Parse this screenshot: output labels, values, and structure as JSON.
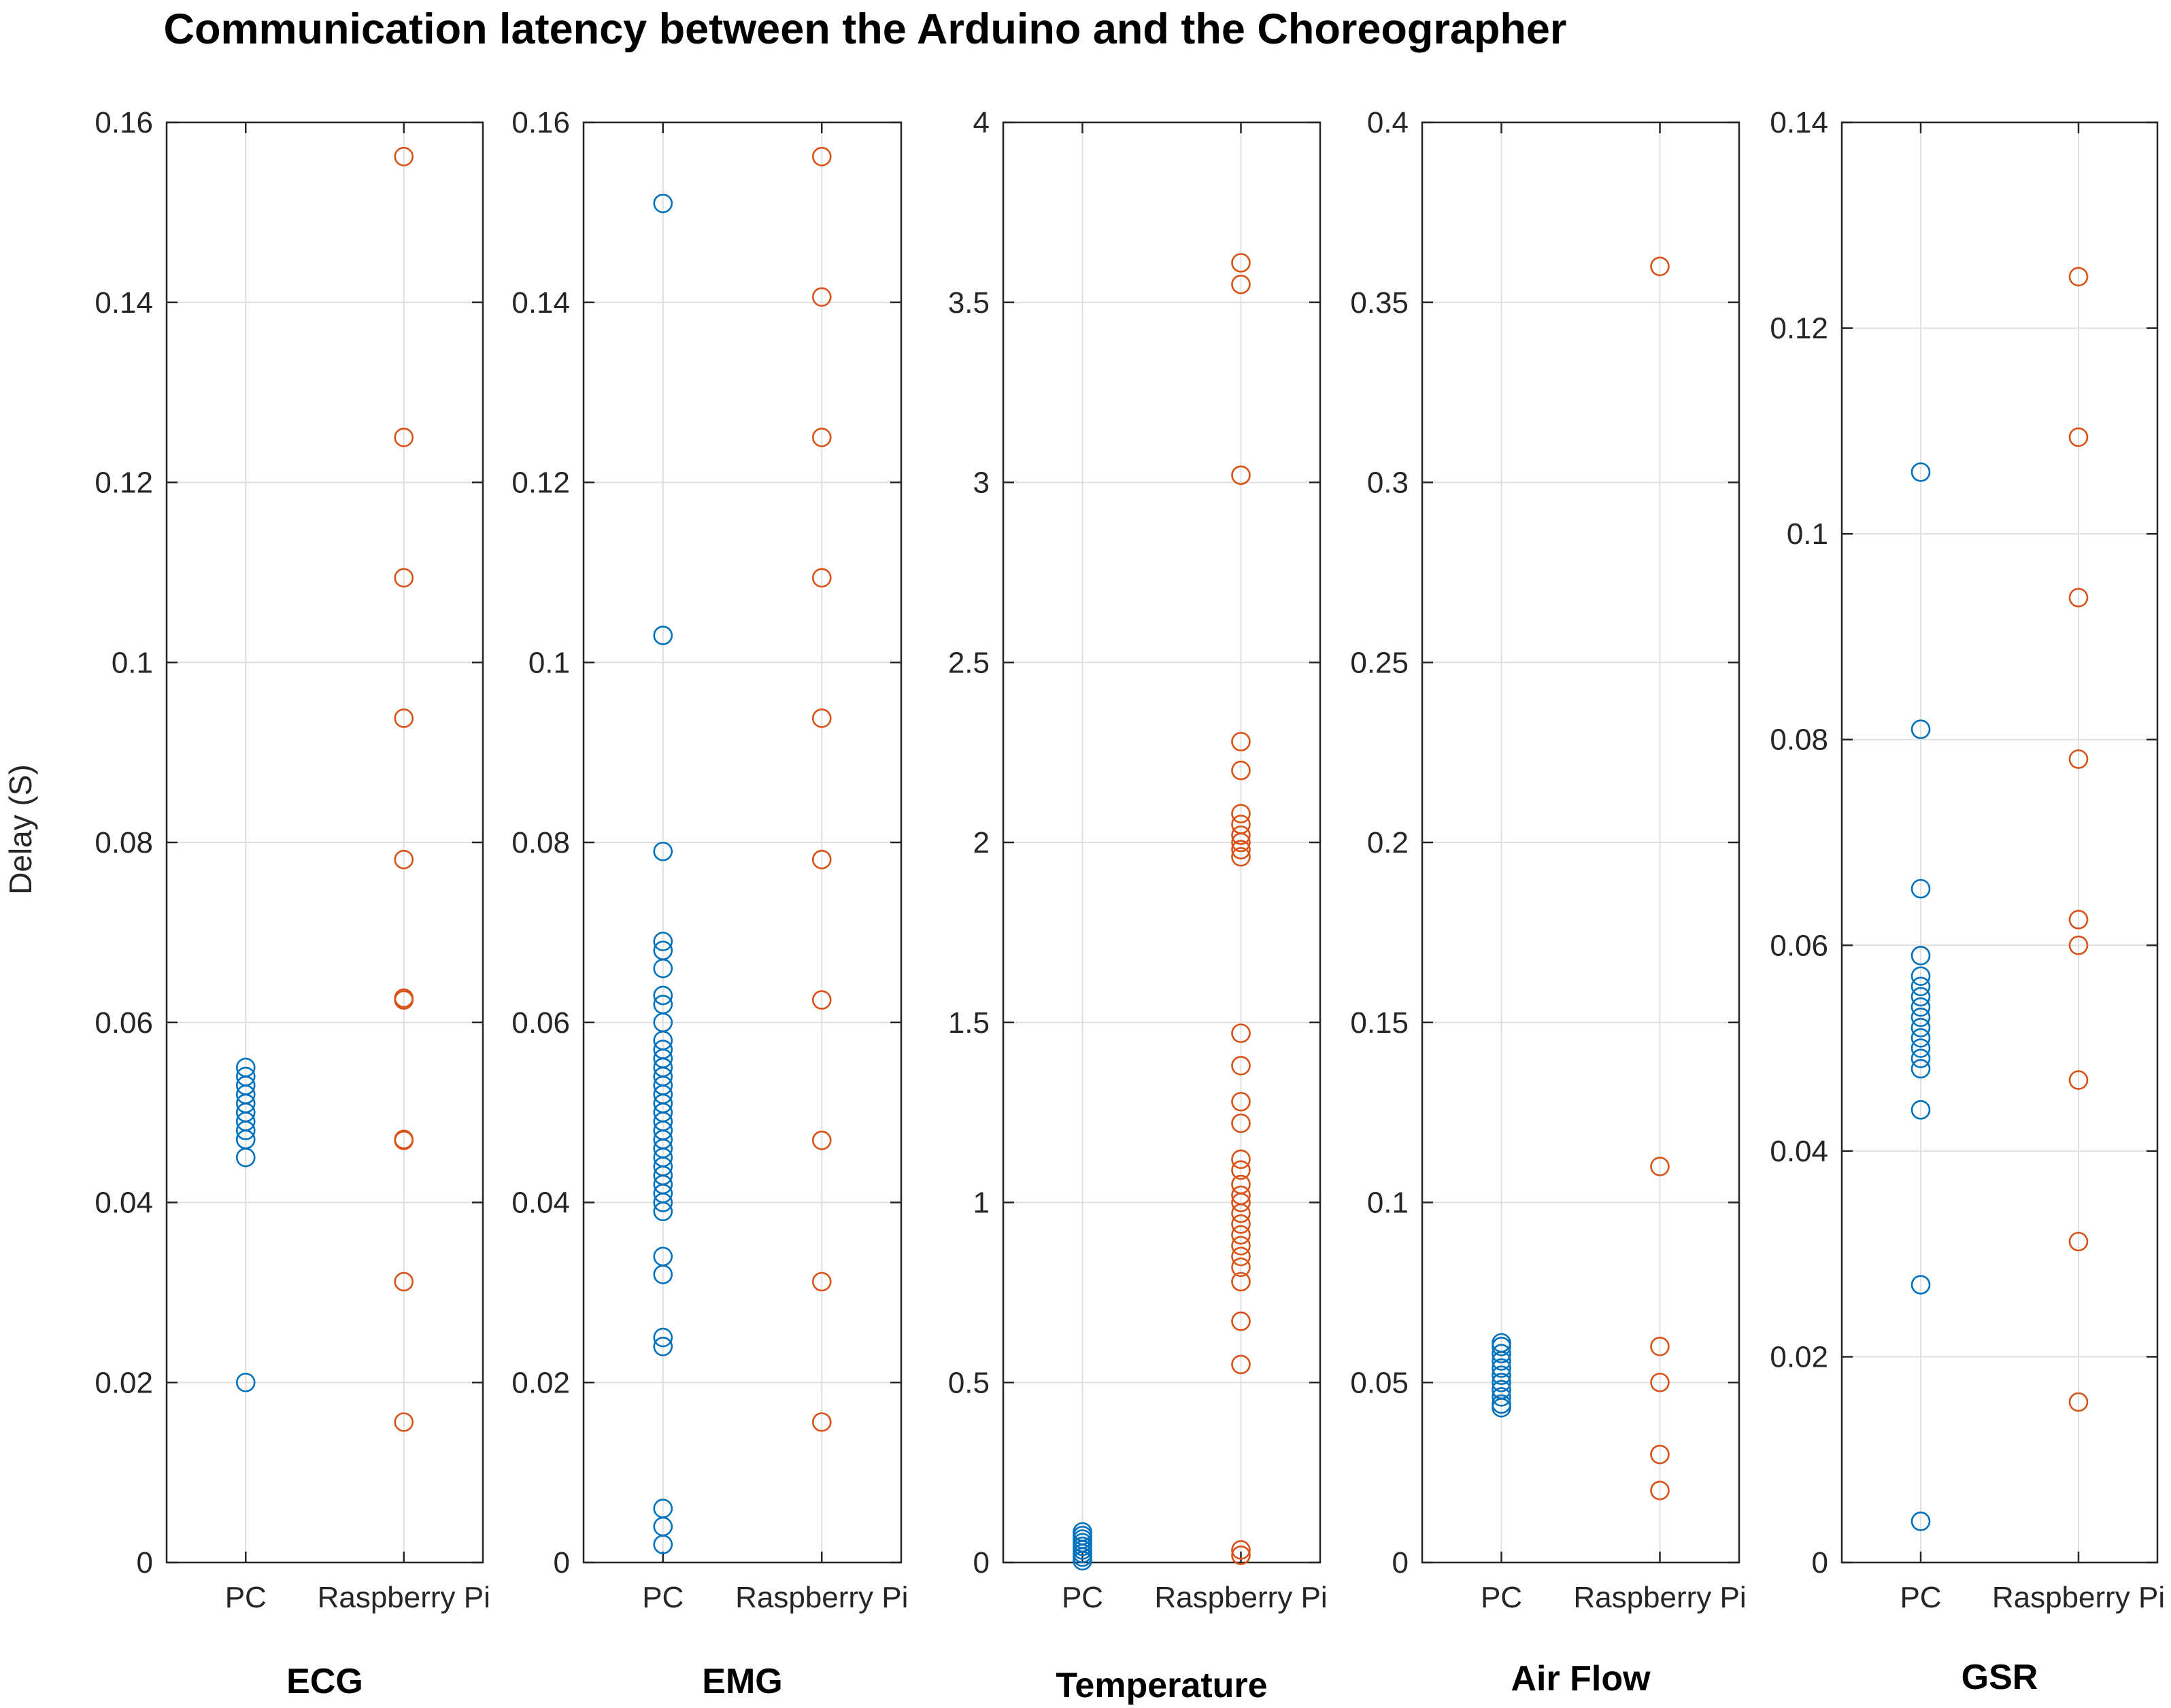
{
  "chart_data": {
    "type": "scatter",
    "title": "Communication latency between the Arduino and the Choreographer",
    "ylabel": "Delay (S)",
    "categories": [
      "PC",
      "Raspberry Pi"
    ],
    "colors": {
      "PC": "#0072BD",
      "Raspberry Pi": "#D95319"
    },
    "panels": [
      {
        "name": "ECG",
        "ylim": [
          0,
          0.16
        ],
        "yticks": [
          0,
          0.02,
          0.04,
          0.06,
          0.08,
          0.1,
          0.12,
          0.14,
          0.16
        ],
        "ytick_labels": [
          "0",
          "0.02",
          "0.04",
          "0.06",
          "0.08",
          "0.1",
          "0.12",
          "0.14",
          "0.16"
        ],
        "series": [
          {
            "name": "PC",
            "values": [
              0.02,
              0.045,
              0.047,
              0.048,
              0.049,
              0.05,
              0.051,
              0.052,
              0.053,
              0.054,
              0.055
            ]
          },
          {
            "name": "Raspberry Pi",
            "values": [
              0.0156,
              0.0312,
              0.0469,
              0.047,
              0.0625,
              0.0627,
              0.0781,
              0.0938,
              0.1094,
              0.125,
              0.1562
            ]
          }
        ]
      },
      {
        "name": "EMG",
        "ylim": [
          0,
          0.16
        ],
        "yticks": [
          0,
          0.02,
          0.04,
          0.06,
          0.08,
          0.1,
          0.12,
          0.14,
          0.16
        ],
        "ytick_labels": [
          "0",
          "0.02",
          "0.04",
          "0.06",
          "0.08",
          "0.1",
          "0.12",
          "0.14",
          "0.16"
        ],
        "series": [
          {
            "name": "PC",
            "values": [
              0.002,
              0.004,
              0.006,
              0.024,
              0.025,
              0.032,
              0.034,
              0.039,
              0.04,
              0.041,
              0.042,
              0.043,
              0.044,
              0.045,
              0.046,
              0.047,
              0.048,
              0.049,
              0.05,
              0.051,
              0.052,
              0.053,
              0.054,
              0.055,
              0.056,
              0.057,
              0.058,
              0.06,
              0.062,
              0.063,
              0.066,
              0.068,
              0.069,
              0.079,
              0.103,
              0.151
            ]
          },
          {
            "name": "Raspberry Pi",
            "values": [
              0.0156,
              0.0312,
              0.0469,
              0.0625,
              0.0781,
              0.0938,
              0.1094,
              0.125,
              0.1406,
              0.1562
            ]
          }
        ]
      },
      {
        "name": "Temperature",
        "ylim": [
          0,
          4
        ],
        "yticks": [
          0,
          0.5,
          1,
          1.5,
          2,
          2.5,
          3,
          3.5,
          4
        ],
        "ytick_labels": [
          "0",
          "0.5",
          "1",
          "1.5",
          "2",
          "2.5",
          "3",
          "3.5",
          "4"
        ],
        "series": [
          {
            "name": "PC",
            "values": [
              0.005,
              0.015,
              0.025,
              0.035,
              0.045,
              0.055,
              0.065,
              0.075,
              0.085
            ]
          },
          {
            "name": "Raspberry Pi",
            "values": [
              0.02,
              0.035,
              0.55,
              0.67,
              0.78,
              0.82,
              0.85,
              0.88,
              0.91,
              0.94,
              0.97,
              1.0,
              1.02,
              1.05,
              1.09,
              1.12,
              1.22,
              1.28,
              1.38,
              1.47,
              1.96,
              1.98,
              2.0,
              2.02,
              2.05,
              2.08,
              2.2,
              2.28,
              3.02,
              3.55,
              3.61
            ]
          }
        ]
      },
      {
        "name": "Air Flow",
        "ylim": [
          0,
          0.4
        ],
        "yticks": [
          0,
          0.05,
          0.1,
          0.15,
          0.2,
          0.25,
          0.3,
          0.35,
          0.4
        ],
        "ytick_labels": [
          "0",
          "0.05",
          "0.1",
          "0.15",
          "0.2",
          "0.25",
          "0.3",
          "0.35",
          "0.4"
        ],
        "series": [
          {
            "name": "PC",
            "values": [
              0.043,
              0.044,
              0.046,
              0.048,
              0.05,
              0.052,
              0.054,
              0.056,
              0.058,
              0.06,
              0.061
            ]
          },
          {
            "name": "Raspberry Pi",
            "values": [
              0.02,
              0.03,
              0.05,
              0.06,
              0.11,
              0.36
            ]
          }
        ]
      },
      {
        "name": "GSR",
        "ylim": [
          0,
          0.14
        ],
        "yticks": [
          0,
          0.02,
          0.04,
          0.06,
          0.08,
          0.1,
          0.12,
          0.14
        ],
        "ytick_labels": [
          "0",
          "0.02",
          "0.04",
          "0.06",
          "0.08",
          "0.1",
          "0.12",
          "0.14"
        ],
        "series": [
          {
            "name": "PC",
            "values": [
              0.004,
              0.027,
              0.044,
              0.048,
              0.049,
              0.05,
              0.051,
              0.052,
              0.053,
              0.054,
              0.055,
              0.056,
              0.057,
              0.059,
              0.0655,
              0.081,
              0.106
            ]
          },
          {
            "name": "Raspberry Pi",
            "values": [
              0.0156,
              0.0312,
              0.0469,
              0.06,
              0.0625,
              0.0781,
              0.0938,
              0.1094,
              0.125
            ]
          }
        ]
      }
    ]
  }
}
